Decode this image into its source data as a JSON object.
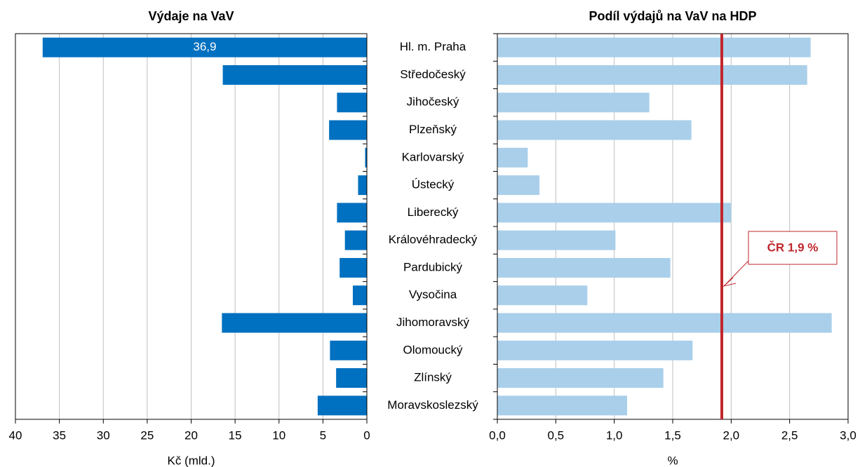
{
  "chart_data": [
    {
      "type": "bar",
      "orientation": "horizontal",
      "title": "Výdaje na VaV",
      "xlabel": "Kč (mld.)",
      "categories": [
        "Hl. m. Praha",
        "Středočeský",
        "Jihočeský",
        "Plzeňský",
        "Karlovarský",
        "Ústecký",
        "Liberecký",
        "Královéhradecký",
        "Pardubický",
        "Vysočina",
        "Jihomoravský",
        "Olomoucký",
        "Zlínský",
        "Moravskoslezský"
      ],
      "values": [
        36.9,
        16.4,
        3.4,
        4.3,
        0.2,
        1.0,
        3.4,
        2.5,
        3.1,
        1.6,
        16.5,
        4.2,
        3.5,
        5.6
      ],
      "value_labels": [
        "36,9",
        null,
        null,
        null,
        null,
        null,
        null,
        null,
        null,
        null,
        null,
        null,
        null,
        null
      ],
      "color": "#0070c0",
      "xlim": [
        40,
        0
      ],
      "xticks": [
        40,
        35,
        30,
        25,
        20,
        15,
        10,
        5,
        0
      ],
      "grid": true
    },
    {
      "type": "bar",
      "orientation": "horizontal",
      "title": "Podíl výdajů na VaV na HDP",
      "xlabel": "%",
      "values": [
        2.68,
        2.65,
        1.3,
        1.66,
        0.26,
        0.36,
        2.0,
        1.01,
        1.48,
        0.77,
        2.86,
        1.67,
        1.42,
        1.11
      ],
      "color": "#a9cfea",
      "xlim": [
        0,
        3
      ],
      "xticks": [
        {
          "value": 0,
          "label": "0,0"
        },
        {
          "value": 0.5,
          "label": "0,5"
        },
        {
          "value": 1,
          "label": "1,0"
        },
        {
          "value": 1.5,
          "label": "1,5"
        },
        {
          "value": 2,
          "label": "2,0"
        },
        {
          "value": 2.5,
          "label": "2,5"
        },
        {
          "value": 3,
          "label": "3,0"
        }
      ],
      "grid": true,
      "reference_line": {
        "value": 1.92,
        "label": "ČR 1,9 %",
        "color": "#c0272d"
      }
    }
  ]
}
